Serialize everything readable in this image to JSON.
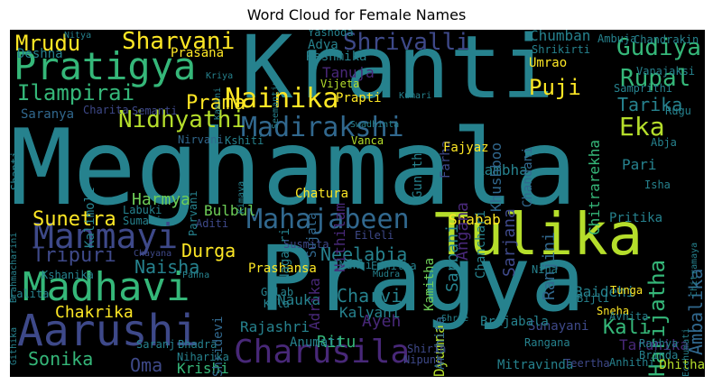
{
  "title": "Word Cloud for Female Names",
  "palette": {
    "background": "#000000",
    "purple": "#482878",
    "indigo": "#3e4989",
    "blue": "#31688e",
    "teal": "#26828e",
    "aqua": "#1f9e89",
    "green": "#35b779",
    "lime": "#6ece58",
    "yellow": "#b5de2b",
    "gold": "#fde725"
  },
  "words": [
    {
      "text": "Meghamala",
      "color": "#26828e"
    },
    {
      "text": "Pragya",
      "color": "#26828e"
    },
    {
      "text": "Kranti",
      "color": "#26828e"
    },
    {
      "text": "Tulika",
      "color": "#b5de2b"
    },
    {
      "text": "Pratigya",
      "color": "#35b779"
    },
    {
      "text": "Aarushi",
      "color": "#3e4989"
    },
    {
      "text": "Madhavi",
      "color": "#35b779"
    },
    {
      "text": "Charusila",
      "color": "#482878"
    },
    {
      "text": "Manmayi",
      "color": "#3e4989"
    },
    {
      "text": "Mahajabeen",
      "color": "#31688e"
    },
    {
      "text": "Madirakshi",
      "color": "#31688e"
    },
    {
      "text": "Nainika",
      "color": "#fde725"
    },
    {
      "text": "Nidhyathi",
      "color": "#b5de2b"
    },
    {
      "text": "Shrivalli",
      "color": "#3e4989"
    },
    {
      "text": "Sharvani",
      "color": "#fde725"
    },
    {
      "text": "Mrudu",
      "color": "#fde725"
    },
    {
      "text": "Ilampirai",
      "color": "#35b779"
    },
    {
      "text": "Gudiya",
      "color": "#35b779"
    },
    {
      "text": "Rupal",
      "color": "#35b779"
    },
    {
      "text": "Eka",
      "color": "#b5de2b"
    },
    {
      "text": "Harijatha",
      "color": "#35b779"
    },
    {
      "text": "Ambalika",
      "color": "#31688e"
    },
    {
      "text": "Tarika",
      "color": "#26828e"
    },
    {
      "text": "Prama",
      "color": "#fde725"
    },
    {
      "text": "Puji",
      "color": "#fde725"
    },
    {
      "text": "Sunetra",
      "color": "#fde725"
    },
    {
      "text": "Tripuri",
      "color": "#3e4989"
    },
    {
      "text": "Naisha",
      "color": "#26828e"
    },
    {
      "text": "Durga",
      "color": "#fde725"
    },
    {
      "text": "Harmya",
      "color": "#6ece58"
    },
    {
      "text": "Bulbul",
      "color": "#6ece58"
    },
    {
      "text": "Neelabja",
      "color": "#26828e"
    },
    {
      "text": "Charvi",
      "color": "#26828e"
    },
    {
      "text": "Kalyani",
      "color": "#26828e"
    },
    {
      "text": "Ayeh",
      "color": "#482878"
    },
    {
      "text": "Ritu",
      "color": "#35b779"
    },
    {
      "text": "Rajashri",
      "color": "#26828e"
    },
    {
      "text": "Anumati",
      "color": "#26828e"
    },
    {
      "text": "Kali",
      "color": "#35b779"
    },
    {
      "text": "Sonika",
      "color": "#35b779"
    },
    {
      "text": "Oma",
      "color": "#3e4989"
    },
    {
      "text": "Krishi",
      "color": "#35b779"
    },
    {
      "text": "Chakrika",
      "color": "#fde725"
    },
    {
      "text": "Baidehi",
      "color": "#26828e"
    },
    {
      "text": "Nauka",
      "color": "#26828e"
    },
    {
      "text": "Dyumna",
      "color": "#b5de2b"
    },
    {
      "text": "Rambha",
      "color": "#26828e"
    },
    {
      "text": "Pari",
      "color": "#26828e"
    },
    {
      "text": "Pritika",
      "color": "#26828e"
    },
    {
      "text": "Shabab",
      "color": "#fde725"
    },
    {
      "text": "Prashansa",
      "color": "#fde725"
    },
    {
      "text": "Sarbani",
      "color": "#26828e"
    },
    {
      "text": "Ranjini",
      "color": "#31688e"
    },
    {
      "text": "Sarjana",
      "color": "#3e4989"
    },
    {
      "text": "Angana",
      "color": "#482878"
    },
    {
      "text": "Nithilam",
      "color": "#482878"
    },
    {
      "text": "Adrika",
      "color": "#482878"
    },
    {
      "text": "Sujata",
      "color": "#31688e"
    },
    {
      "text": "Nagasri",
      "color": "#26828e"
    },
    {
      "text": "Chanchari",
      "color": "#26828e"
    },
    {
      "text": "Kamitha",
      "color": "#6ece58"
    },
    {
      "text": "Archita",
      "color": "#31688e"
    },
    {
      "text": "Chandani",
      "color": "#31688e"
    },
    {
      "text": "Khushboo",
      "color": "#31688e"
    },
    {
      "text": "Gunitha",
      "color": "#26828e"
    },
    {
      "text": "Farha",
      "color": "#3e4989"
    },
    {
      "text": "Umrao",
      "color": "#fde725"
    },
    {
      "text": "Chumban",
      "color": "#26828e"
    },
    {
      "text": "Shrikirti",
      "color": "#26828e"
    },
    {
      "text": "Samprithi",
      "color": "#26828e"
    },
    {
      "text": "Tanuja",
      "color": "#482878"
    },
    {
      "text": "Prapti",
      "color": "#fde725"
    },
    {
      "text": "Rashmika",
      "color": "#26828e"
    },
    {
      "text": "Adya",
      "color": "#26828e"
    },
    {
      "text": "Yashoda",
      "color": "#26828e"
    },
    {
      "text": "Prasana",
      "color": "#fde725"
    },
    {
      "text": "Deshna",
      "color": "#26828e"
    },
    {
      "text": "Saranya",
      "color": "#31688e"
    },
    {
      "text": "Charita",
      "color": "#3e4989"
    },
    {
      "text": "Semanti",
      "color": "#3e4989"
    },
    {
      "text": "Chitrarekha",
      "color": "#35b779"
    },
    {
      "text": "Fajyaz",
      "color": "#fde725"
    },
    {
      "text": "Vanca",
      "color": "#b5de2b"
    },
    {
      "text": "Chatura",
      "color": "#fde725"
    },
    {
      "text": "Mukti",
      "color": "#26828e"
    },
    {
      "text": "Edhitha",
      "color": "#26828e"
    },
    {
      "text": "Gulab",
      "color": "#26828e"
    },
    {
      "text": "Kala",
      "color": "#26828e"
    },
    {
      "text": "Eileli",
      "color": "#3e4989"
    },
    {
      "text": "Susmita",
      "color": "#3e4989"
    },
    {
      "text": "Sunayani",
      "color": "#3e4989"
    },
    {
      "text": "Rangana",
      "color": "#26828e"
    },
    {
      "text": "Brijabala",
      "color": "#26828e"
    },
    {
      "text": "Mitravinda",
      "color": "#26828e"
    },
    {
      "text": "Teertha",
      "color": "#3e4989"
    },
    {
      "text": "Anhithi",
      "color": "#26828e"
    },
    {
      "text": "Tarunika",
      "color": "#482878"
    },
    {
      "text": "Dhitha",
      "color": "#b5de2b"
    },
    {
      "text": "Brinda",
      "color": "#26828e"
    },
    {
      "text": "Rabhya",
      "color": "#26828e"
    },
    {
      "text": "Sneha",
      "color": "#fde725"
    },
    {
      "text": "Bijli",
      "color": "#26828e"
    },
    {
      "text": "Tunga",
      "color": "#fde725"
    },
    {
      "text": "Nina",
      "color": "#26828e"
    },
    {
      "text": "Avnita",
      "color": "#26828e"
    },
    {
      "text": "Isha",
      "color": "#26828e"
    },
    {
      "text": "Abja",
      "color": "#26828e"
    },
    {
      "text": "Rugu",
      "color": "#26828e"
    },
    {
      "text": "Ambuja",
      "color": "#26828e"
    },
    {
      "text": "Chandrakin",
      "color": "#26828e"
    },
    {
      "text": "Vanajaksi",
      "color": "#26828e"
    },
    {
      "text": "Nipuna",
      "color": "#3e4989"
    },
    {
      "text": "Shirin",
      "color": "#3e4989"
    },
    {
      "text": "Mudra",
      "color": "#26828e"
    },
    {
      "text": "Shree",
      "color": "#26828e"
    },
    {
      "text": "Niharika",
      "color": "#26828e"
    },
    {
      "text": "Saranj",
      "color": "#26828e"
    },
    {
      "text": "Bhadra",
      "color": "#26828e"
    },
    {
      "text": "Shridevi",
      "color": "#31688e"
    },
    {
      "text": "Panna",
      "color": "#26828e"
    },
    {
      "text": "Chayana",
      "color": "#3e4989"
    },
    {
      "text": "Lalita",
      "color": "#26828e"
    },
    {
      "text": "Kshanika",
      "color": "#26828e"
    },
    {
      "text": "Githika",
      "color": "#26828e"
    },
    {
      "text": "Aditi",
      "color": "#3e4989"
    },
    {
      "text": "Labuki",
      "color": "#26828e"
    },
    {
      "text": "Sumati",
      "color": "#26828e"
    },
    {
      "text": "Parvani",
      "color": "#26828e"
    },
    {
      "text": "Nirvani",
      "color": "#31688e"
    },
    {
      "text": "Kshiti",
      "color": "#26828e"
    },
    {
      "text": "Shanti",
      "color": "#26828e"
    },
    {
      "text": "Kumari",
      "color": "#26828e"
    },
    {
      "text": "Vijeta",
      "color": "#b5de2b"
    },
    {
      "text": "Swadhinta",
      "color": "#26828e"
    },
    {
      "text": "Nitya",
      "color": "#26828e"
    },
    {
      "text": "Kriya",
      "color": "#26828e"
    },
    {
      "text": "Seemantini",
      "color": "#26828e"
    },
    {
      "text": "Kamini",
      "color": "#26828e"
    },
    {
      "text": "Ecchumati",
      "color": "#26828e"
    },
    {
      "text": "Chitramaya",
      "color": "#26828e"
    },
    {
      "text": "Kimaya",
      "color": "#26828e"
    },
    {
      "text": "Brahmacharini",
      "color": "#26828e"
    },
    {
      "text": "Kalimoli",
      "color": "#26828e"
    },
    {
      "text": "Mahajabeen",
      "color": "#3e4989"
    }
  ]
}
